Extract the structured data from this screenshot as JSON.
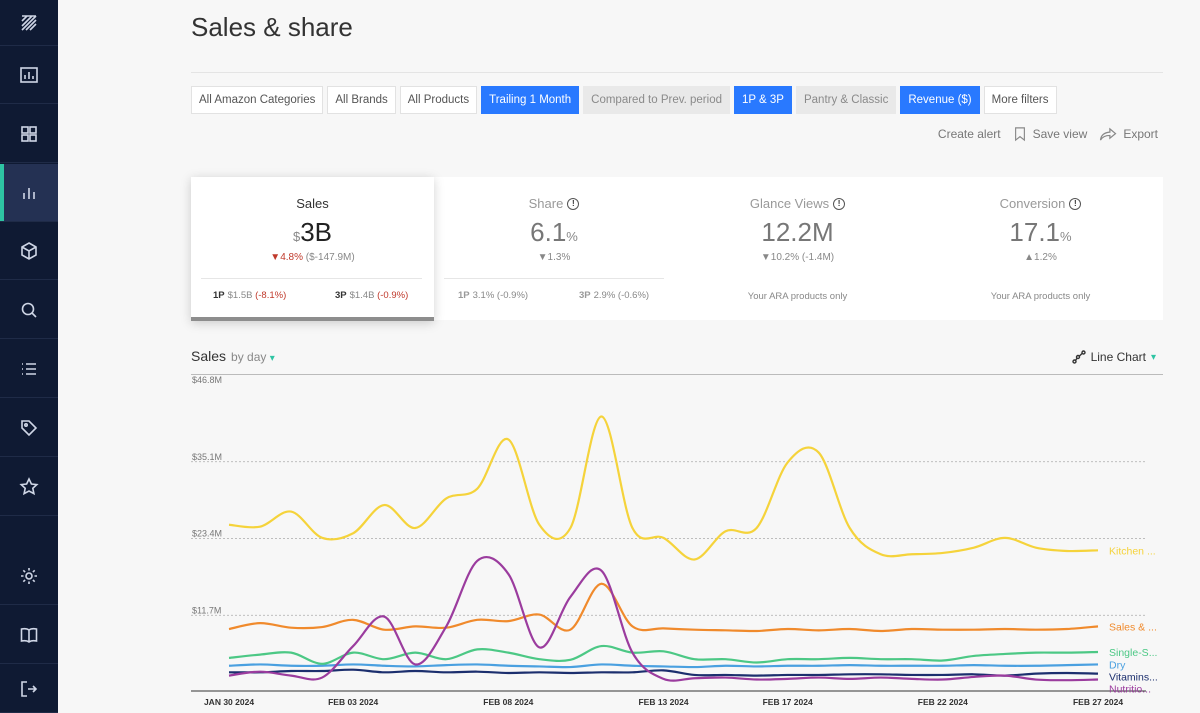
{
  "page": {
    "title": "Sales & share"
  },
  "sidebar": {
    "items": [
      {
        "icon": "logo-icon"
      },
      {
        "icon": "report-chart-icon"
      },
      {
        "icon": "dashboard-grid-icon"
      },
      {
        "icon": "bar-chart-icon",
        "active": true
      },
      {
        "icon": "box-icon"
      },
      {
        "icon": "search-icon"
      },
      {
        "icon": "list-icon"
      },
      {
        "icon": "tag-icon"
      },
      {
        "icon": "star-icon"
      },
      {
        "icon": "settings-gear-icon"
      },
      {
        "icon": "book-icon"
      },
      {
        "icon": "logout-icon"
      }
    ]
  },
  "filters": [
    {
      "label": "All Amazon Categories",
      "state": "default"
    },
    {
      "label": "All Brands",
      "state": "default"
    },
    {
      "label": "All Products",
      "state": "default"
    },
    {
      "label": "Trailing 1 Month",
      "state": "on"
    },
    {
      "label": "Compared to Prev. period",
      "state": "muted"
    },
    {
      "label": "1P & 3P",
      "state": "on"
    },
    {
      "label": "Pantry & Classic",
      "state": "muted"
    },
    {
      "label": "Revenue ($)",
      "state": "on"
    },
    {
      "label": "More filters",
      "state": "default"
    }
  ],
  "actions": {
    "create_alert": "Create alert",
    "save_view": "Save view",
    "export": "Export"
  },
  "metrics": {
    "sales": {
      "title": "Sales",
      "prefix": "$",
      "value": "3B",
      "change_pct": "4.8%",
      "change_abs": "($-147.9M)",
      "p1_label": "1P",
      "p1_value": "$1.5B",
      "p1_change": "(-8.1%)",
      "p3_label": "3P",
      "p3_value": "$1.4B",
      "p3_change": "(-0.9%)"
    },
    "share": {
      "title": "Share",
      "value": "6.1",
      "suffix": "%",
      "change": "1.3%",
      "p1_label": "1P",
      "p1_value": "3.1%",
      "p1_change": "(-0.9%)",
      "p3_label": "3P",
      "p3_value": "2.9%",
      "p3_change": "(-0.6%)"
    },
    "glance": {
      "title": "Glance Views",
      "value": "12.2M",
      "change": "10.2% (-1.4M)",
      "note": "Your ARA products only"
    },
    "conversion": {
      "title": "Conversion",
      "value": "17.1",
      "suffix": "%",
      "change": "1.2%",
      "note": "Your ARA products only"
    }
  },
  "chart_header": {
    "title": "Sales",
    "granularity": "by day",
    "chart_type": "Line Chart"
  },
  "chart_data": {
    "type": "line",
    "ylim": [
      0,
      46.8
    ],
    "y_ticks": [
      {
        "value": 46.8,
        "label": "$46.8M"
      },
      {
        "value": 35.1,
        "label": "$35.1M"
      },
      {
        "value": 23.4,
        "label": "$23.4M"
      },
      {
        "value": 11.7,
        "label": "$11.7M"
      }
    ],
    "x_ticks": [
      {
        "day": 0,
        "label": "JAN 30 2024"
      },
      {
        "day": 4,
        "label": "FEB 03 2024"
      },
      {
        "day": 9,
        "label": "FEB 08 2024"
      },
      {
        "day": 14,
        "label": "FEB 13 2024"
      },
      {
        "day": 18,
        "label": "FEB 17 2024"
      },
      {
        "day": 23,
        "label": "FEB 22 2024"
      },
      {
        "day": 28,
        "label": "FEB 27 2024"
      }
    ],
    "series": [
      {
        "name": "Kitchen ...",
        "color": "#f5d33b",
        "values": [
          25.5,
          25.2,
          27.5,
          23.5,
          24.2,
          28.5,
          25.0,
          29.5,
          31.0,
          38.5,
          25.5,
          25.0,
          42.0,
          25.0,
          23.5,
          20.2,
          24.5,
          25.0,
          35.0,
          36.5,
          25.0,
          21.0,
          21.0,
          21.2,
          22.0,
          23.5,
          22.0,
          21.5,
          21.6
        ]
      },
      {
        "name": "Sales & ...",
        "color": "#f08a2c",
        "values": [
          9.6,
          10.5,
          9.8,
          9.9,
          11.0,
          9.5,
          10.0,
          9.8,
          11.0,
          10.8,
          11.8,
          9.5,
          16.5,
          10.0,
          9.7,
          9.5,
          9.4,
          9.3,
          9.6,
          9.4,
          9.6,
          9.3,
          9.6,
          9.5,
          9.5,
          9.6,
          9.5,
          9.6,
          10.0
        ]
      },
      {
        "name": "Single-S...",
        "color": "#4cc885",
        "values": [
          5.2,
          5.7,
          6.0,
          4.3,
          6.0,
          5.0,
          6.0,
          5.0,
          6.5,
          6.0,
          5.0,
          4.9,
          7.0,
          6.0,
          6.2,
          5.0,
          5.0,
          4.5,
          5.0,
          5.0,
          5.2,
          5.0,
          5.0,
          4.8,
          5.5,
          5.8,
          6.0,
          6.0,
          6.1
        ]
      },
      {
        "name": "Dry",
        "color": "#4aa0e0",
        "values": [
          4.0,
          4.2,
          4.0,
          4.0,
          4.2,
          4.0,
          3.9,
          4.1,
          4.2,
          4.0,
          3.9,
          3.8,
          4.2,
          4.0,
          3.9,
          3.8,
          4.0,
          3.9,
          4.0,
          4.0,
          4.1,
          4.0,
          4.0,
          4.0,
          4.1,
          4.0,
          4.0,
          4.1,
          4.2
        ]
      },
      {
        "name": "Vitamins...",
        "color": "#1c2f6e",
        "values": [
          3.0,
          3.0,
          3.2,
          3.2,
          3.4,
          3.0,
          3.2,
          3.0,
          3.1,
          2.9,
          3.0,
          2.9,
          3.0,
          3.0,
          3.3,
          2.6,
          2.6,
          2.5,
          2.6,
          2.6,
          2.7,
          2.7,
          2.6,
          2.6,
          2.7,
          2.5,
          2.8,
          2.9,
          2.8
        ]
      },
      {
        "name": "Nutritio...",
        "color": "#9b3c9e",
        "values": [
          2.5,
          3.1,
          2.5,
          2.2,
          7.0,
          11.5,
          4.2,
          10.0,
          20.0,
          18.0,
          6.8,
          14.5,
          18.5,
          6.0,
          2.0,
          2.1,
          2.2,
          1.9,
          2.0,
          2.2,
          2.0,
          2.2,
          2.0,
          1.9,
          2.3,
          2.5,
          1.9,
          1.8,
          1.9
        ]
      }
    ]
  }
}
